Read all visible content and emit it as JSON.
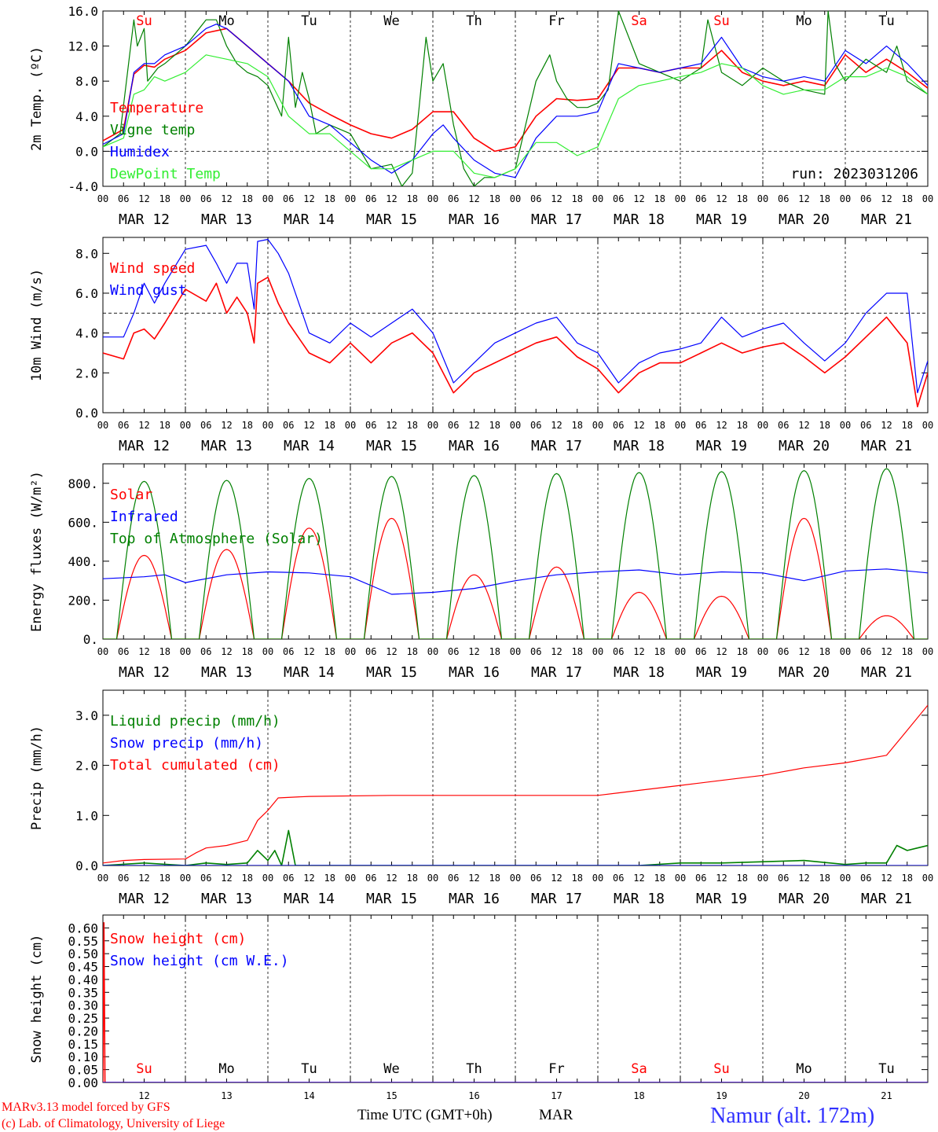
{
  "footer": {
    "model": "MARv3.13 model forced by GFS",
    "credit": "(c) Lab. of Climatology, University of Liege",
    "time_label": "Time UTC (GMT+0h)",
    "month": "MAR",
    "station": "Namur (alt. 172m)"
  },
  "colors": {
    "red": "#ff0000",
    "green": "#008000",
    "blue": "#0000ff",
    "lightgreen": "#33ee33",
    "black": "#000000"
  },
  "chart_data": [
    {
      "type": "line",
      "ylabel": "2m Temp. (ºC)",
      "ylim": [
        -4,
        16
      ],
      "yticks": [
        "-4.0",
        "0.0",
        "4.0",
        "8.0",
        "12.0",
        "16.0"
      ],
      "reference_line": 0,
      "annotation": "run: 2023031206",
      "x_hours_labels": [
        "00",
        "06",
        "12",
        "18"
      ],
      "day_labels": [
        "MAR 12",
        "MAR 13",
        "MAR 14",
        "MAR 15",
        "MAR 16",
        "MAR 17",
        "MAR 18",
        "MAR 19",
        "MAR 20",
        "MAR 21"
      ],
      "weekdays": [
        {
          "label": "Su",
          "color": "#ff0000"
        },
        {
          "label": "Mo",
          "color": "#000000"
        },
        {
          "label": "Tu",
          "color": "#000000"
        },
        {
          "label": "We",
          "color": "#000000"
        },
        {
          "label": "Th",
          "color": "#000000"
        },
        {
          "label": "Fr",
          "color": "#000000"
        },
        {
          "label": "Sa",
          "color": "#ff0000"
        },
        {
          "label": "Su",
          "color": "#ff0000"
        },
        {
          "label": "Mo",
          "color": "#000000"
        },
        {
          "label": "Tu",
          "color": "#000000"
        }
      ],
      "series": [
        {
          "name": "Temperature",
          "color": "#ff0000",
          "x": [
            0,
            6,
            9,
            12,
            15,
            18,
            24,
            30,
            36,
            39,
            42,
            48,
            54,
            60,
            66,
            72,
            78,
            84,
            90,
            96,
            102,
            108,
            114,
            120,
            126,
            132,
            138,
            144,
            150,
            156,
            162,
            168,
            174,
            180,
            186,
            192,
            198,
            204,
            210,
            216,
            222,
            228,
            234,
            240
          ],
          "values": [
            1.2,
            2.5,
            8.8,
            9.8,
            9.6,
            10.5,
            11.5,
            13.5,
            14,
            13,
            12,
            10,
            8,
            5.5,
            4.2,
            3,
            2,
            1.5,
            2.5,
            4.5,
            4.5,
            1.5,
            0,
            0.5,
            4,
            6,
            5.8,
            6,
            9.5,
            9.5,
            9,
            9.5,
            9.5,
            11.5,
            9,
            8,
            7.5,
            8,
            7.5,
            11,
            9,
            10.5,
            9,
            7.2
          ]
        },
        {
          "name": "Vigne temp",
          "color": "#008000",
          "x": [
            0,
            5,
            9,
            10,
            12,
            13,
            16,
            18,
            24,
            30,
            33,
            36,
            39,
            42,
            45,
            48,
            52,
            54,
            56,
            58,
            60,
            62,
            66,
            72,
            78,
            84,
            87,
            90,
            92,
            94,
            96,
            99,
            102,
            105,
            108,
            111,
            114,
            117,
            120,
            123,
            126,
            130,
            132,
            135,
            138,
            141,
            144,
            147,
            150,
            156,
            162,
            168,
            174,
            176,
            180,
            186,
            192,
            198,
            204,
            210,
            211,
            213,
            216,
            222,
            228,
            231,
            234,
            240
          ],
          "values": [
            0.5,
            2,
            15,
            12,
            14,
            8,
            9.5,
            10,
            12,
            15,
            15,
            12,
            10,
            9,
            8.5,
            7.5,
            4,
            13,
            5,
            9,
            6,
            2,
            3,
            2,
            -2,
            -1.5,
            -4,
            -2.5,
            5,
            13,
            8,
            10,
            3,
            -2,
            -4,
            -3,
            -3,
            -2.5,
            -2,
            3,
            8,
            11,
            8,
            6,
            5,
            5,
            5.5,
            7,
            16,
            10,
            9,
            8,
            9.5,
            15,
            9,
            7.5,
            9.5,
            8,
            7,
            6.5,
            16,
            10,
            8,
            10.5,
            9,
            12,
            8,
            6.5
          ]
        },
        {
          "name": "Humidex",
          "color": "#0000ff",
          "x": [
            0,
            6,
            9,
            12,
            15,
            18,
            24,
            30,
            33,
            36,
            39,
            42,
            48,
            54,
            60,
            66,
            72,
            78,
            84,
            90,
            96,
            99,
            102,
            108,
            114,
            120,
            126,
            132,
            138,
            144,
            150,
            156,
            162,
            168,
            174,
            180,
            186,
            192,
            198,
            204,
            210,
            216,
            222,
            228,
            234,
            240
          ],
          "values": [
            0.8,
            2,
            9,
            10,
            10,
            11,
            12,
            14,
            14.5,
            14,
            13,
            12,
            10,
            8,
            4,
            3,
            1,
            -1,
            -2.5,
            -1,
            2,
            3,
            1.5,
            -1,
            -2.5,
            -3,
            1.5,
            4,
            4,
            4.5,
            10,
            9.5,
            9,
            9.5,
            10,
            13,
            9.5,
            8.5,
            8,
            8.5,
            8,
            11.5,
            10,
            12,
            10,
            7.5
          ]
        },
        {
          "name": "DewPoint Temp",
          "color": "#33ee33",
          "x": [
            0,
            6,
            9,
            12,
            15,
            18,
            24,
            30,
            36,
            42,
            48,
            54,
            60,
            66,
            72,
            78,
            84,
            90,
            96,
            102,
            108,
            114,
            120,
            126,
            132,
            138,
            144,
            150,
            156,
            162,
            168,
            174,
            180,
            186,
            192,
            198,
            204,
            210,
            216,
            222,
            228,
            234,
            240
          ],
          "values": [
            0.5,
            1.5,
            6.5,
            7,
            8.5,
            8,
            9,
            11,
            10.5,
            10,
            8.5,
            4,
            2,
            2,
            0,
            -2,
            -2,
            -1,
            0,
            0,
            -2.5,
            -3,
            -2,
            1,
            1,
            -0.5,
            0.5,
            6,
            7.5,
            8,
            8.5,
            9,
            10,
            9.5,
            7.5,
            6.5,
            7,
            7,
            8.5,
            8.5,
            9.5,
            8.5,
            6.5
          ]
        }
      ],
      "legend_position": "left"
    },
    {
      "type": "line",
      "ylabel": "10m Wind (m/s)",
      "ylim": [
        0,
        8.8
      ],
      "yticks": [
        "0.0",
        "2.0",
        "4.0",
        "6.0",
        "8.0"
      ],
      "reference_line": 5,
      "series": [
        {
          "name": "Wind speed",
          "color": "#ff0000",
          "x": [
            0,
            6,
            9,
            12,
            15,
            18,
            24,
            30,
            33,
            36,
            39,
            42,
            44,
            45,
            48,
            51,
            54,
            60,
            66,
            72,
            78,
            84,
            90,
            96,
            102,
            108,
            114,
            120,
            126,
            132,
            138,
            144,
            150,
            156,
            162,
            168,
            174,
            180,
            186,
            192,
            198,
            204,
            210,
            216,
            222,
            228,
            234,
            237,
            240
          ],
          "values": [
            3,
            2.7,
            4,
            4.2,
            3.7,
            4.5,
            6.2,
            5.6,
            6.5,
            5,
            5.8,
            5,
            3.5,
            6.5,
            6.8,
            5.5,
            4.5,
            3,
            2.5,
            3.5,
            2.5,
            3.5,
            4,
            3,
            1,
            2,
            2.5,
            3,
            3.5,
            3.8,
            2.8,
            2.2,
            1,
            2,
            2.5,
            2.5,
            3,
            3.5,
            3,
            3.3,
            3.5,
            2.8,
            2,
            2.8,
            3.8,
            4.8,
            3.5,
            0.3,
            2
          ]
        },
        {
          "name": "Wind gust",
          "color": "#0000ff",
          "x": [
            0,
            6,
            9,
            12,
            15,
            18,
            24,
            30,
            33,
            36,
            39,
            42,
            44,
            45,
            48,
            51,
            54,
            60,
            66,
            72,
            78,
            84,
            90,
            96,
            102,
            108,
            114,
            120,
            126,
            132,
            138,
            144,
            150,
            156,
            162,
            168,
            174,
            180,
            186,
            192,
            198,
            204,
            210,
            216,
            222,
            228,
            234,
            237,
            240
          ],
          "values": [
            3.8,
            3.8,
            5,
            6.5,
            5.5,
            6.5,
            8.2,
            8.4,
            7.5,
            6.5,
            7.5,
            7.5,
            5.2,
            8.6,
            8.7,
            8,
            7,
            4,
            3.5,
            4.5,
            3.8,
            4.5,
            5.2,
            4,
            1.5,
            2.5,
            3.5,
            4,
            4.5,
            4.8,
            3.5,
            3,
            1.5,
            2.5,
            3,
            3.2,
            3.5,
            4.8,
            3.8,
            4.2,
            4.5,
            3.5,
            2.6,
            3.5,
            5,
            6,
            6,
            1,
            2.6
          ]
        }
      ],
      "legend_position": "left"
    },
    {
      "type": "line",
      "ylabel": "Energy fluxes (W/m²)",
      "ylim": [
        0,
        900
      ],
      "yticks": [
        "0.",
        "200.",
        "400.",
        "600.",
        "800."
      ],
      "series": [
        {
          "name": "Solar",
          "color": "#ff0000",
          "peaks": [
            {
              "center": 12,
              "value": 430
            },
            {
              "center": 36,
              "value": 460
            },
            {
              "center": 60,
              "value": 570
            },
            {
              "center": 84,
              "value": 620
            },
            {
              "center": 108,
              "value": 330
            },
            {
              "center": 132,
              "value": 370
            },
            {
              "center": 156,
              "value": 240
            },
            {
              "center": 180,
              "value": 220
            },
            {
              "center": 204,
              "value": 620
            },
            {
              "center": 228,
              "value": 120
            }
          ]
        },
        {
          "name": "Infrared",
          "color": "#0000ff",
          "x": [
            0,
            12,
            18,
            24,
            36,
            48,
            60,
            72,
            84,
            96,
            108,
            120,
            132,
            144,
            156,
            168,
            180,
            192,
            204,
            216,
            228,
            240
          ],
          "values": [
            310,
            320,
            330,
            290,
            330,
            345,
            340,
            320,
            230,
            240,
            260,
            300,
            330,
            345,
            355,
            330,
            345,
            340,
            300,
            350,
            360,
            340
          ]
        },
        {
          "name": "Top of Atmosphere (Solar)",
          "color": "#008000",
          "peaks": [
            {
              "center": 12,
              "value": 810
            },
            {
              "center": 36,
              "value": 815
            },
            {
              "center": 60,
              "value": 825
            },
            {
              "center": 84,
              "value": 835
            },
            {
              "center": 108,
              "value": 840
            },
            {
              "center": 132,
              "value": 850
            },
            {
              "center": 156,
              "value": 855
            },
            {
              "center": 180,
              "value": 860
            },
            {
              "center": 204,
              "value": 865
            },
            {
              "center": 228,
              "value": 875
            }
          ]
        }
      ],
      "legend_position": "left"
    },
    {
      "type": "line",
      "ylabel": "Precip (mm/h)",
      "ylim": [
        0,
        3.5
      ],
      "yticks": [
        "0.0",
        "1.0",
        "2.0",
        "3.0"
      ],
      "series": [
        {
          "name": "Liquid precip (mm/h)",
          "color": "#008000",
          "x": [
            0,
            12,
            24,
            30,
            36,
            42,
            45,
            48,
            50,
            52,
            54,
            56,
            60,
            84,
            108,
            132,
            144,
            156,
            168,
            180,
            204,
            216,
            222,
            228,
            231,
            234,
            237,
            240
          ],
          "values": [
            0,
            0.05,
            0,
            0.05,
            0.02,
            0.05,
            0.3,
            0.1,
            0.3,
            0,
            0.7,
            0,
            0,
            0,
            0,
            0,
            0,
            0,
            0.05,
            0.05,
            0.1,
            0.02,
            0.05,
            0.05,
            0.4,
            0.3,
            0.35,
            0.4
          ]
        },
        {
          "name": "Snow precip (mm/h)",
          "color": "#0000ff",
          "x": [
            0,
            240
          ],
          "values": [
            0,
            0
          ]
        },
        {
          "name": "Total cumulated (cm)",
          "color": "#ff0000",
          "x": [
            0,
            6,
            12,
            24,
            27,
            30,
            36,
            42,
            45,
            48,
            51,
            60,
            84,
            108,
            132,
            144,
            150,
            156,
            168,
            180,
            192,
            204,
            216,
            228,
            234,
            240
          ],
          "values": [
            0.05,
            0.1,
            0.12,
            0.13,
            0.25,
            0.35,
            0.4,
            0.5,
            0.9,
            1.1,
            1.35,
            1.38,
            1.4,
            1.4,
            1.4,
            1.4,
            1.45,
            1.5,
            1.6,
            1.7,
            1.8,
            1.95,
            2.05,
            2.2,
            2.7,
            3.2
          ]
        }
      ],
      "legend_position": "left"
    },
    {
      "type": "line",
      "ylabel": "Snow height (cm)",
      "ylim": [
        0,
        0.65
      ],
      "yticks": [
        "0.00",
        "0.05",
        "0.10",
        "0.15",
        "0.20",
        "0.25",
        "0.30",
        "0.35",
        "0.40",
        "0.45",
        "0.50",
        "0.55",
        "0.60"
      ],
      "day_numbers": [
        "12",
        "13",
        "14",
        "15",
        "16",
        "17",
        "18",
        "19",
        "20",
        "21"
      ],
      "series": [
        {
          "name": "Snow height (cm)",
          "color": "#ff0000",
          "x": [
            0,
            0.3,
            0.6,
            240
          ],
          "values": [
            0,
            0.62,
            0,
            0
          ]
        },
        {
          "name": "Snow height (cm W.E.)",
          "color": "#0000ff",
          "x": [
            0,
            240
          ],
          "values": [
            0,
            0
          ]
        }
      ],
      "legend_position": "top-left"
    }
  ]
}
